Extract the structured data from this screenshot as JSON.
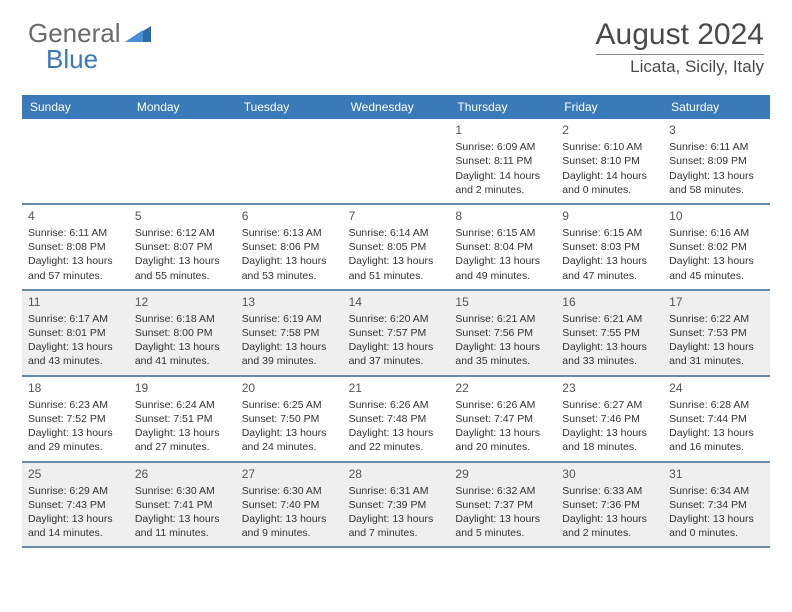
{
  "logo": {
    "text1": "General",
    "text2": "Blue"
  },
  "title": "August 2024",
  "location": "Licata, Sicily, Italy",
  "colors": {
    "headerBg": "#3a7ab8",
    "headerText": "#ffffff",
    "shadedBg": "#efefef",
    "rowDivider": "#6a8aa8",
    "pageBg": "#ffffff",
    "bodyText": "#333333",
    "titleText": "#4a4a4a",
    "logoGray": "#6a6a6a",
    "logoBlue": "#3a7ab8"
  },
  "dayNames": [
    "Sunday",
    "Monday",
    "Tuesday",
    "Wednesday",
    "Thursday",
    "Friday",
    "Saturday"
  ],
  "weeks": [
    [
      {
        "empty": true
      },
      {
        "empty": true
      },
      {
        "empty": true
      },
      {
        "empty": true
      },
      {
        "num": "1",
        "sunrise": "Sunrise: 6:09 AM",
        "sunset": "Sunset: 8:11 PM",
        "daylight": "Daylight: 14 hours and 2 minutes."
      },
      {
        "num": "2",
        "sunrise": "Sunrise: 6:10 AM",
        "sunset": "Sunset: 8:10 PM",
        "daylight": "Daylight: 14 hours and 0 minutes."
      },
      {
        "num": "3",
        "sunrise": "Sunrise: 6:11 AM",
        "sunset": "Sunset: 8:09 PM",
        "daylight": "Daylight: 13 hours and 58 minutes."
      }
    ],
    [
      {
        "num": "4",
        "sunrise": "Sunrise: 6:11 AM",
        "sunset": "Sunset: 8:08 PM",
        "daylight": "Daylight: 13 hours and 57 minutes."
      },
      {
        "num": "5",
        "sunrise": "Sunrise: 6:12 AM",
        "sunset": "Sunset: 8:07 PM",
        "daylight": "Daylight: 13 hours and 55 minutes."
      },
      {
        "num": "6",
        "sunrise": "Sunrise: 6:13 AM",
        "sunset": "Sunset: 8:06 PM",
        "daylight": "Daylight: 13 hours and 53 minutes."
      },
      {
        "num": "7",
        "sunrise": "Sunrise: 6:14 AM",
        "sunset": "Sunset: 8:05 PM",
        "daylight": "Daylight: 13 hours and 51 minutes."
      },
      {
        "num": "8",
        "sunrise": "Sunrise: 6:15 AM",
        "sunset": "Sunset: 8:04 PM",
        "daylight": "Daylight: 13 hours and 49 minutes."
      },
      {
        "num": "9",
        "sunrise": "Sunrise: 6:15 AM",
        "sunset": "Sunset: 8:03 PM",
        "daylight": "Daylight: 13 hours and 47 minutes."
      },
      {
        "num": "10",
        "sunrise": "Sunrise: 6:16 AM",
        "sunset": "Sunset: 8:02 PM",
        "daylight": "Daylight: 13 hours and 45 minutes."
      }
    ],
    [
      {
        "num": "11",
        "shaded": true,
        "sunrise": "Sunrise: 6:17 AM",
        "sunset": "Sunset: 8:01 PM",
        "daylight": "Daylight: 13 hours and 43 minutes."
      },
      {
        "num": "12",
        "shaded": true,
        "sunrise": "Sunrise: 6:18 AM",
        "sunset": "Sunset: 8:00 PM",
        "daylight": "Daylight: 13 hours and 41 minutes."
      },
      {
        "num": "13",
        "shaded": true,
        "sunrise": "Sunrise: 6:19 AM",
        "sunset": "Sunset: 7:58 PM",
        "daylight": "Daylight: 13 hours and 39 minutes."
      },
      {
        "num": "14",
        "shaded": true,
        "sunrise": "Sunrise: 6:20 AM",
        "sunset": "Sunset: 7:57 PM",
        "daylight": "Daylight: 13 hours and 37 minutes."
      },
      {
        "num": "15",
        "shaded": true,
        "sunrise": "Sunrise: 6:21 AM",
        "sunset": "Sunset: 7:56 PM",
        "daylight": "Daylight: 13 hours and 35 minutes."
      },
      {
        "num": "16",
        "shaded": true,
        "sunrise": "Sunrise: 6:21 AM",
        "sunset": "Sunset: 7:55 PM",
        "daylight": "Daylight: 13 hours and 33 minutes."
      },
      {
        "num": "17",
        "shaded": true,
        "sunrise": "Sunrise: 6:22 AM",
        "sunset": "Sunset: 7:53 PM",
        "daylight": "Daylight: 13 hours and 31 minutes."
      }
    ],
    [
      {
        "num": "18",
        "sunrise": "Sunrise: 6:23 AM",
        "sunset": "Sunset: 7:52 PM",
        "daylight": "Daylight: 13 hours and 29 minutes."
      },
      {
        "num": "19",
        "sunrise": "Sunrise: 6:24 AM",
        "sunset": "Sunset: 7:51 PM",
        "daylight": "Daylight: 13 hours and 27 minutes."
      },
      {
        "num": "20",
        "sunrise": "Sunrise: 6:25 AM",
        "sunset": "Sunset: 7:50 PM",
        "daylight": "Daylight: 13 hours and 24 minutes."
      },
      {
        "num": "21",
        "sunrise": "Sunrise: 6:26 AM",
        "sunset": "Sunset: 7:48 PM",
        "daylight": "Daylight: 13 hours and 22 minutes."
      },
      {
        "num": "22",
        "sunrise": "Sunrise: 6:26 AM",
        "sunset": "Sunset: 7:47 PM",
        "daylight": "Daylight: 13 hours and 20 minutes."
      },
      {
        "num": "23",
        "sunrise": "Sunrise: 6:27 AM",
        "sunset": "Sunset: 7:46 PM",
        "daylight": "Daylight: 13 hours and 18 minutes."
      },
      {
        "num": "24",
        "sunrise": "Sunrise: 6:28 AM",
        "sunset": "Sunset: 7:44 PM",
        "daylight": "Daylight: 13 hours and 16 minutes."
      }
    ],
    [
      {
        "num": "25",
        "shaded": true,
        "sunrise": "Sunrise: 6:29 AM",
        "sunset": "Sunset: 7:43 PM",
        "daylight": "Daylight: 13 hours and 14 minutes."
      },
      {
        "num": "26",
        "shaded": true,
        "sunrise": "Sunrise: 6:30 AM",
        "sunset": "Sunset: 7:41 PM",
        "daylight": "Daylight: 13 hours and 11 minutes."
      },
      {
        "num": "27",
        "shaded": true,
        "sunrise": "Sunrise: 6:30 AM",
        "sunset": "Sunset: 7:40 PM",
        "daylight": "Daylight: 13 hours and 9 minutes."
      },
      {
        "num": "28",
        "shaded": true,
        "sunrise": "Sunrise: 6:31 AM",
        "sunset": "Sunset: 7:39 PM",
        "daylight": "Daylight: 13 hours and 7 minutes."
      },
      {
        "num": "29",
        "shaded": true,
        "sunrise": "Sunrise: 6:32 AM",
        "sunset": "Sunset: 7:37 PM",
        "daylight": "Daylight: 13 hours and 5 minutes."
      },
      {
        "num": "30",
        "shaded": true,
        "sunrise": "Sunrise: 6:33 AM",
        "sunset": "Sunset: 7:36 PM",
        "daylight": "Daylight: 13 hours and 2 minutes."
      },
      {
        "num": "31",
        "shaded": true,
        "sunrise": "Sunrise: 6:34 AM",
        "sunset": "Sunset: 7:34 PM",
        "daylight": "Daylight: 13 hours and 0 minutes."
      }
    ]
  ]
}
